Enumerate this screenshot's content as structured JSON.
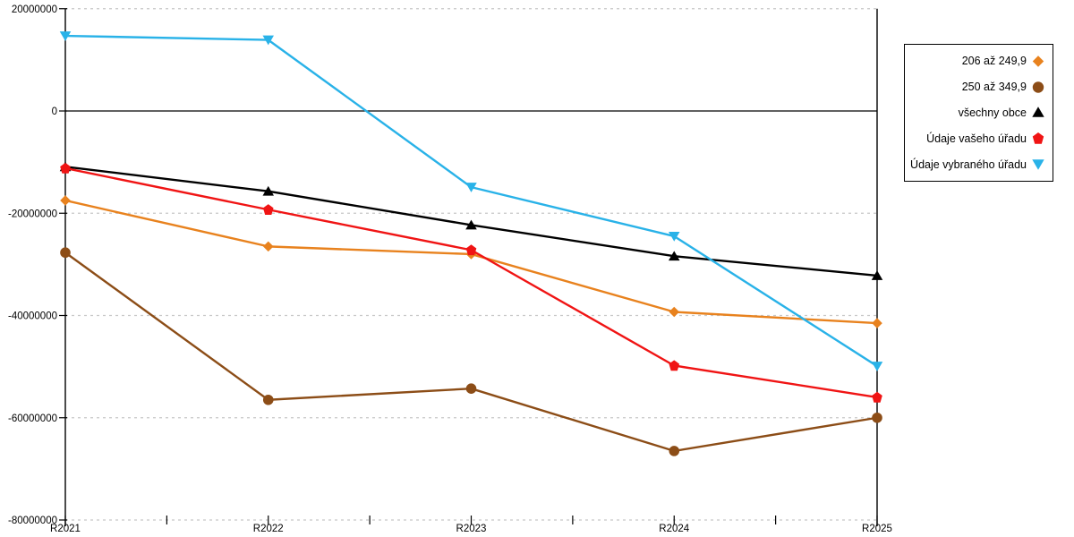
{
  "chart_data": {
    "type": "line",
    "title": "",
    "xlabel": "",
    "ylabel": "",
    "categories": [
      "R2021",
      "R2022",
      "R2023",
      "R2024",
      "R2025"
    ],
    "series": [
      {
        "name": "206 až 249,9",
        "marker": "diamond",
        "color": "#E8821E",
        "values": [
          -17500000,
          -26500000,
          -28000000,
          -39300000,
          -41500000
        ]
      },
      {
        "name": "250 až 349,9",
        "marker": "circle",
        "color": "#8C4D17",
        "values": [
          -27700000,
          -56500000,
          -54300000,
          -66500000,
          -60000000
        ]
      },
      {
        "name": "všechny obce",
        "marker": "triangle-up",
        "color": "#000000",
        "values": [
          -10900000,
          -15700000,
          -22300000,
          -28400000,
          -32200000
        ]
      },
      {
        "name": "Údaje vašeho úřadu",
        "marker": "pentagon",
        "color": "#F01414",
        "values": [
          -11200000,
          -19300000,
          -27200000,
          -49800000,
          -56000000
        ]
      },
      {
        "name": "Údaje vybraného úřadu",
        "marker": "triangle-down",
        "color": "#29B2E8",
        "values": [
          14700000,
          13900000,
          -14900000,
          -24500000,
          -49900000
        ]
      }
    ],
    "ylim": [
      -80000000,
      20000000
    ],
    "yticks": [
      20000000,
      0,
      -20000000,
      -40000000,
      -60000000,
      -80000000
    ],
    "ytick_labels": [
      "20000000",
      "0",
      "-20000000",
      "-40000000",
      "-60000000",
      "-80000000"
    ],
    "grid": "horizontal dashed gridlines at every 20000000; solid black line at 0",
    "legend_position": "top-right",
    "axis_color": "#000000",
    "gridline_color": "#C8C8C8"
  }
}
